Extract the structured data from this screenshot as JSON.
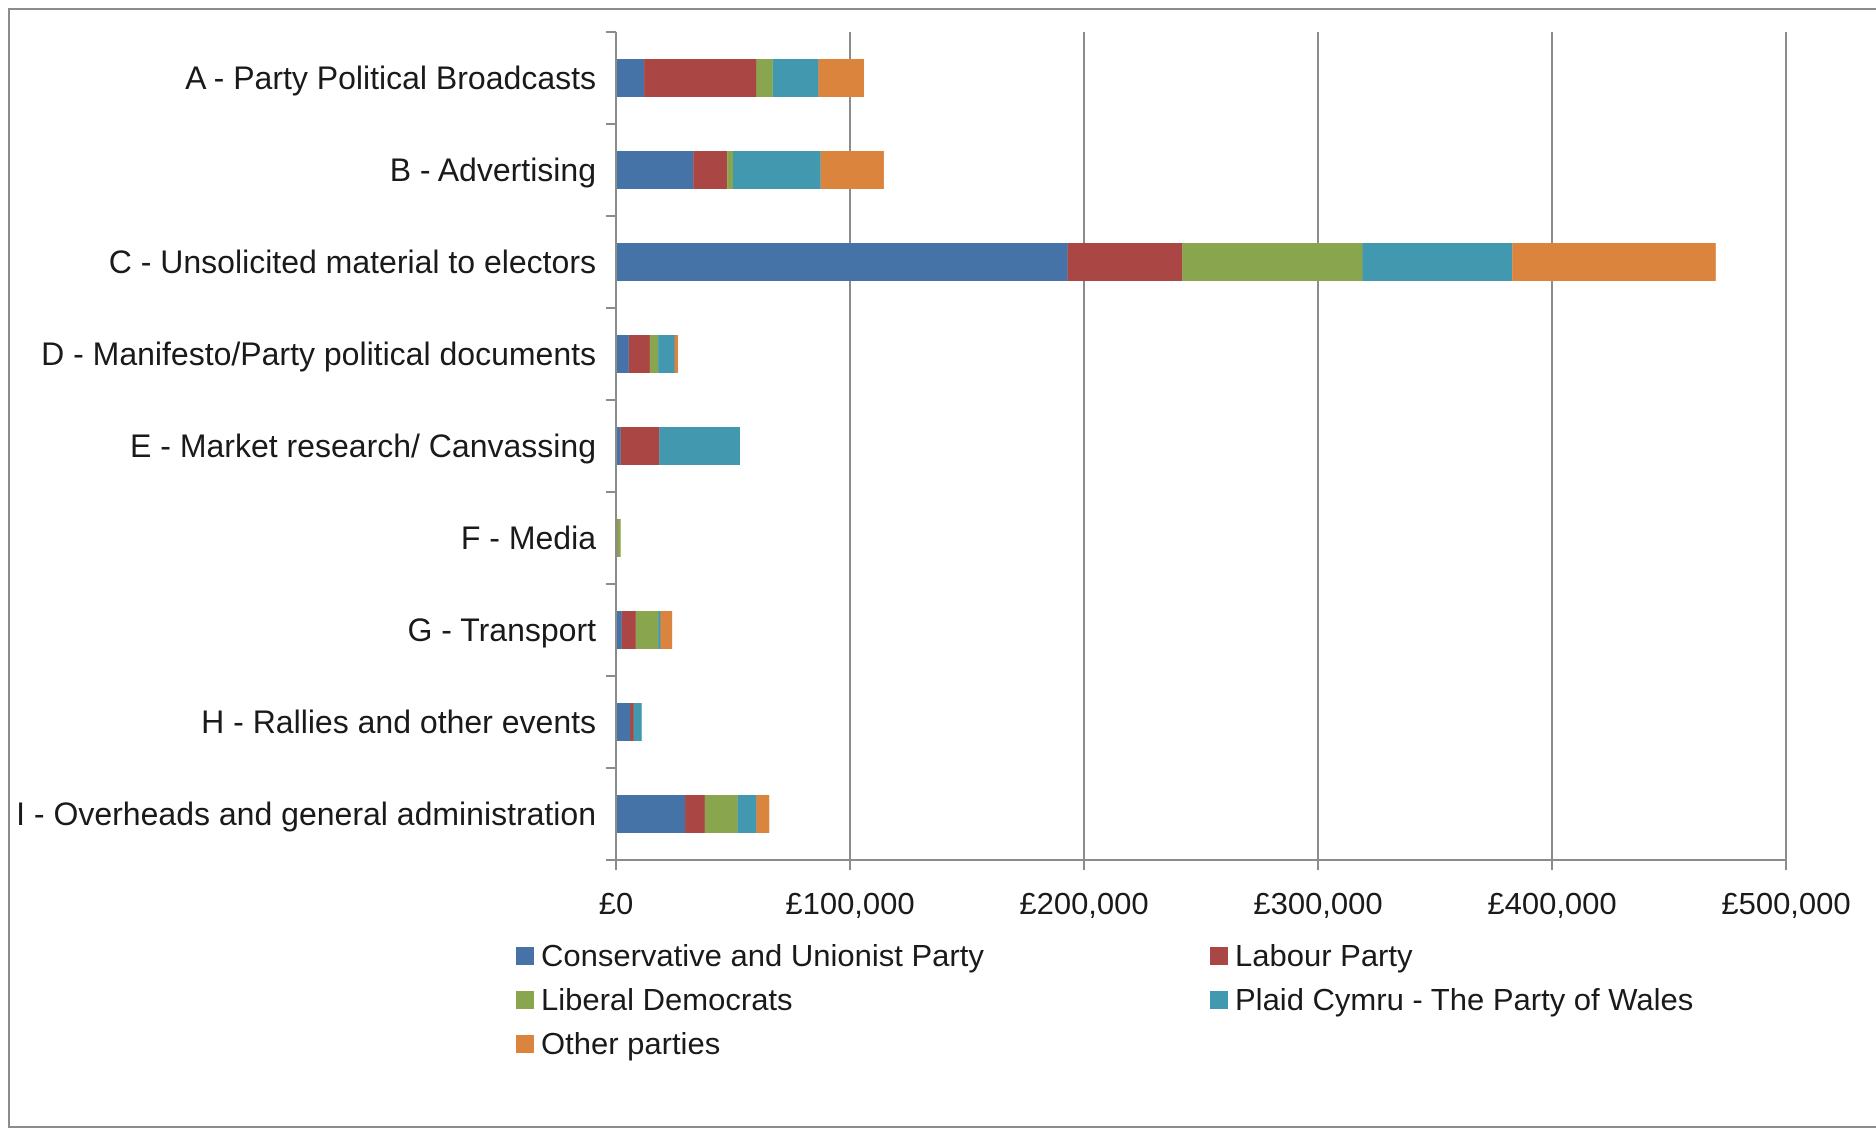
{
  "chart_data": {
    "type": "bar",
    "orientation": "horizontal",
    "stacked": true,
    "categories": [
      "A - Party Political Broadcasts",
      "B - Advertising",
      "C - Unsolicited material to electors",
      "D - Manifesto/Party political documents",
      "E - Market research/ Canvassing",
      "F - Media",
      "G - Transport",
      "H - Rallies and other events",
      "I - Overheads and general administration"
    ],
    "series": [
      {
        "name": "Conservative and Unionist Party",
        "color": "#4572a7",
        "values": [
          12000,
          33000,
          193000,
          5500,
          2000,
          300,
          2500,
          6000,
          29500
        ]
      },
      {
        "name": "Labour Party",
        "color": "#aa4643",
        "values": [
          48000,
          14500,
          49000,
          9000,
          16500,
          300,
          6000,
          1500,
          8500
        ]
      },
      {
        "name": "Liberal Democrats",
        "color": "#89a54e",
        "values": [
          7000,
          2500,
          77000,
          3500,
          0,
          1400,
          9500,
          0,
          14000
        ]
      },
      {
        "name": "Plaid Cymru - The Party of Wales",
        "color": "#4198af",
        "values": [
          19500,
          37500,
          64000,
          7000,
          34500,
          0,
          1000,
          3500,
          8000
        ]
      },
      {
        "name": "Other parties",
        "color": "#db843d",
        "values": [
          19500,
          27000,
          87000,
          1500,
          0,
          0,
          5000,
          0,
          5500
        ]
      }
    ],
    "xlim": [
      0,
      500000
    ],
    "x_ticks": [
      "£0",
      "£100,000",
      "£200,000",
      "£300,000",
      "£400,000",
      "£500,000"
    ],
    "x_tick_values": [
      0,
      100000,
      200000,
      300000,
      400000,
      500000
    ],
    "grid": true,
    "legend_position": "bottom"
  }
}
